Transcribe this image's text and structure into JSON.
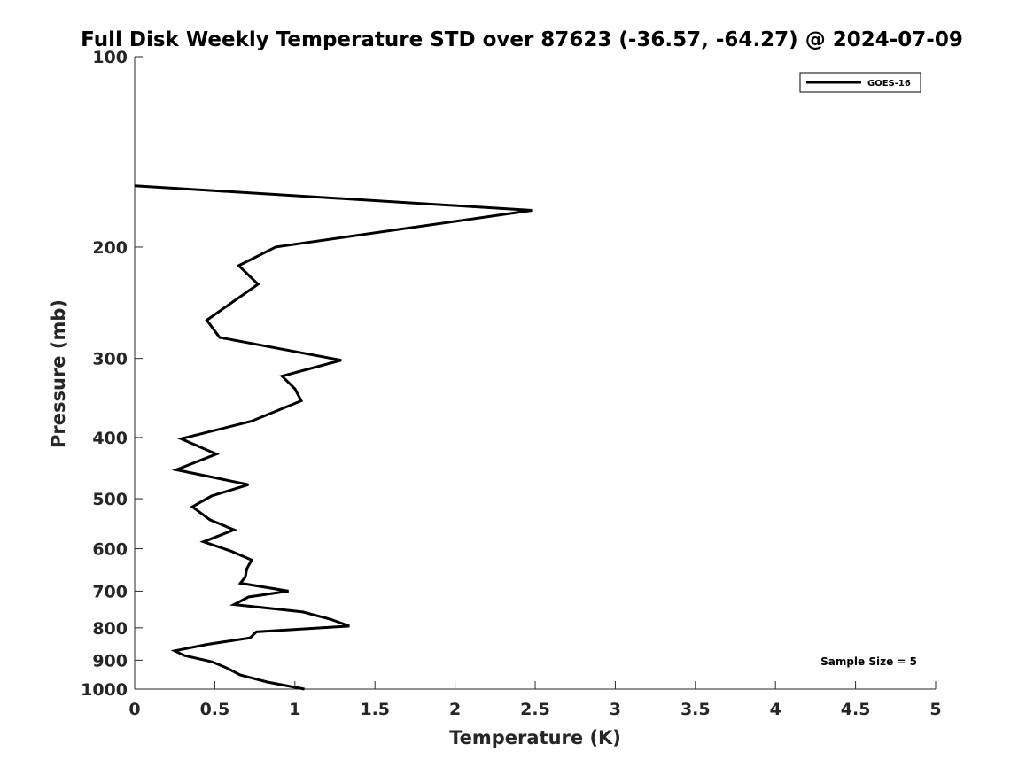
{
  "chart_data": {
    "type": "line",
    "title": "Full Disk Weekly Temperature STD over 87623 (-36.57, -64.27) @ 2024-07-09",
    "xlabel": "Temperature (K)",
    "ylabel": "Pressure (mb)",
    "xlim": [
      0,
      5
    ],
    "ylim": [
      100,
      1000
    ],
    "y_scale": "log",
    "y_reversed": true,
    "x_ticks": [
      "0",
      "0.5",
      "1",
      "1.5",
      "2",
      "2.5",
      "3",
      "3.5",
      "4",
      "4.5",
      "5"
    ],
    "y_ticks": [
      "100",
      "200",
      "300",
      "400",
      "500",
      "600",
      "700",
      "800",
      "900",
      "1000"
    ],
    "grid": false,
    "legend": {
      "position": "top-right",
      "entries": [
        "GOES-16"
      ]
    },
    "annotation": "Sample Size = 5",
    "series": [
      {
        "name": "GOES-16",
        "color": "#000000",
        "x": [
          0.0,
          2.48,
          0.88,
          0.65,
          0.77,
          0.45,
          0.53,
          1.29,
          0.92,
          1.0,
          1.04,
          0.73,
          0.29,
          0.51,
          0.26,
          0.71,
          0.48,
          0.36,
          0.47,
          0.62,
          0.43,
          0.6,
          0.73,
          0.7,
          0.69,
          0.66,
          0.96,
          0.71,
          0.62,
          1.05,
          1.22,
          1.34,
          0.76,
          0.72,
          0.45,
          0.25,
          0.31,
          0.48,
          0.57,
          0.66,
          0.83,
          1.06
        ],
        "y": [
          160,
          175,
          200,
          214,
          229,
          261,
          278,
          302,
          320,
          335,
          350,
          377,
          402,
          425,
          450,
          475,
          495,
          515,
          540,
          560,
          585,
          605,
          625,
          645,
          665,
          680,
          700,
          715,
          735,
          755,
          775,
          795,
          812,
          830,
          850,
          870,
          885,
          905,
          925,
          950,
          975,
          1000
        ]
      }
    ]
  }
}
